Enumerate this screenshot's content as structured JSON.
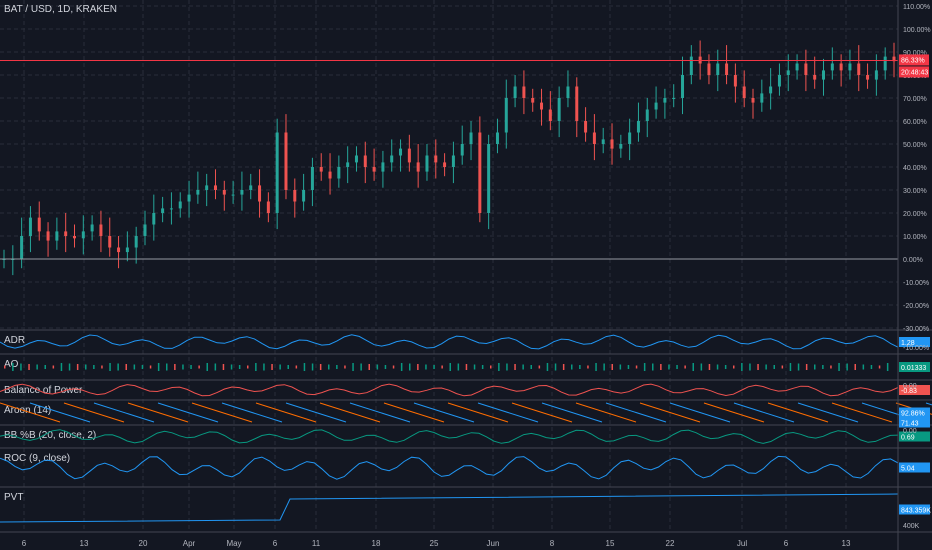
{
  "symbol_label": "BAT / USD, 1D, KRAKEN",
  "colors": {
    "up": "#26a69a",
    "down": "#ef5350",
    "price_line": "#f23645",
    "grid": "#2a2e39",
    "blue": "#2196f3",
    "orange": "#ff6d00",
    "teal": "#089981",
    "red": "#ef5350"
  },
  "main_axis_ticks": [
    "110.00%",
    "100.00%",
    "90.00%",
    "80.00%",
    "70.00%",
    "60.00%",
    "50.00%",
    "40.00%",
    "30.00%",
    "20.00%",
    "10.00%",
    "0.00%",
    "-10.00%",
    "-20.00%",
    "-30.00%"
  ],
  "price_tag": "86.33%",
  "countdown_tag": "20:48:43",
  "x_axis_labels": [
    "6",
    "13",
    "20",
    "Apr",
    "May",
    "6",
    "11",
    "18",
    "25",
    "Jun",
    "8",
    "15",
    "22",
    "Jul",
    "6",
    "13"
  ],
  "panes": [
    {
      "title": "ADR",
      "value": "1.28",
      "axis": [
        "-10.00%"
      ]
    },
    {
      "title": "AO",
      "value": "0.01333",
      "axis": []
    },
    {
      "title": "Balance of Power",
      "value": "-0.83",
      "extra": "0.00",
      "axis": [
        "0.00"
      ]
    },
    {
      "title": "Aroon (14)",
      "value": "92.86%",
      "value2": "71.43",
      "axis": []
    },
    {
      "title": "BB %B (20, close, 2)",
      "value": "0.69",
      "extra": "0.00",
      "axis": [
        "0.00"
      ]
    },
    {
      "title": "ROC (9, close)",
      "value": "5.04",
      "axis": []
    },
    {
      "title": "PVT",
      "value": "843.359K",
      "axis": [
        "400K"
      ]
    }
  ],
  "chart_data": {
    "type": "candlestick",
    "title": "BAT / USD, 1D, KRAKEN",
    "y_unit": "percent change",
    "ylim": [
      -30,
      110
    ],
    "x_labels": [
      "6",
      "13",
      "20",
      "Apr",
      "May",
      "6",
      "11",
      "18",
      "25",
      "Jun",
      "8",
      "15",
      "22",
      "Jul",
      "6",
      "13"
    ],
    "last_value_pct": 86.33,
    "series": [
      {
        "name": "price",
        "values_pct_close": [
          0,
          0,
          10,
          18,
          12,
          8,
          12,
          10,
          9,
          12,
          15,
          10,
          5,
          3,
          5,
          10,
          15,
          20,
          22,
          22,
          25,
          28,
          30,
          32,
          30,
          28,
          28,
          30,
          32,
          25,
          20,
          55,
          30,
          25,
          30,
          40,
          38,
          35,
          40,
          42,
          45,
          40,
          38,
          42,
          45,
          48,
          42,
          38,
          45,
          42,
          40,
          45,
          50,
          55,
          20,
          50,
          55,
          70,
          75,
          70,
          68,
          65,
          60,
          70,
          75,
          60,
          55,
          50,
          52,
          48,
          50,
          55,
          60,
          65,
          68,
          70,
          70,
          80,
          88,
          85,
          80,
          85,
          80,
          75,
          70,
          68,
          72,
          75,
          80,
          82,
          85,
          80,
          78,
          82,
          85,
          82,
          85,
          80,
          78,
          82,
          88,
          86
        ]
      },
      {
        "name": "ADR"
      },
      {
        "name": "AO",
        "value": 0.01333
      },
      {
        "name": "Balance of Power",
        "value": -0.83
      },
      {
        "name": "Aroon Up",
        "value": 92.86
      },
      {
        "name": "Aroon Down",
        "value": 71.43
      },
      {
        "name": "BB %B",
        "value": 0.69
      },
      {
        "name": "ROC",
        "value": 5.04
      },
      {
        "name": "PVT",
        "value": 843359
      }
    ]
  }
}
